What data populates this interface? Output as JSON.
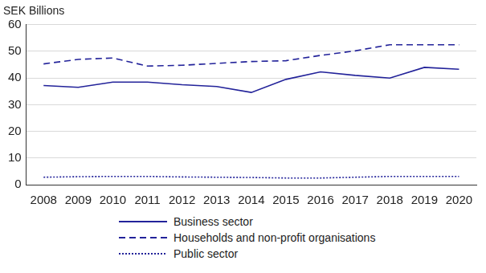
{
  "chart_data": {
    "type": "line",
    "y_label": "SEK Billions",
    "categories": [
      "2008",
      "2009",
      "2010",
      "2011",
      "2012",
      "2013",
      "2014",
      "2015",
      "2016",
      "2017",
      "2018",
      "2019",
      "2020"
    ],
    "series": [
      {
        "name": "Business sector",
        "color": "#23239a",
        "line_style": "solid",
        "values": [
          37.2,
          36.5,
          38.5,
          38.5,
          37.5,
          36.8,
          34.6,
          39.5,
          42.3,
          41,
          40,
          44,
          43.3
        ]
      },
      {
        "name": "Households and non-profit organisations",
        "color": "#23239a",
        "line_style": "dashed",
        "values": [
          45.3,
          47,
          47.5,
          44.5,
          44.8,
          45.5,
          46.2,
          46.5,
          48.5,
          50.2,
          52.5,
          52.5,
          52.5
        ]
      },
      {
        "name": "Public sector",
        "color": "#23239a",
        "line_style": "dotted",
        "values": [
          2.8,
          3,
          3.1,
          3.1,
          2.9,
          2.8,
          2.7,
          2.5,
          2.5,
          2.8,
          3.1,
          3.1,
          3.1
        ]
      }
    ],
    "ylim": [
      0,
      60
    ],
    "yticks": [
      0,
      10,
      20,
      30,
      40,
      50,
      60
    ],
    "grid": true,
    "legend": "bottom"
  }
}
